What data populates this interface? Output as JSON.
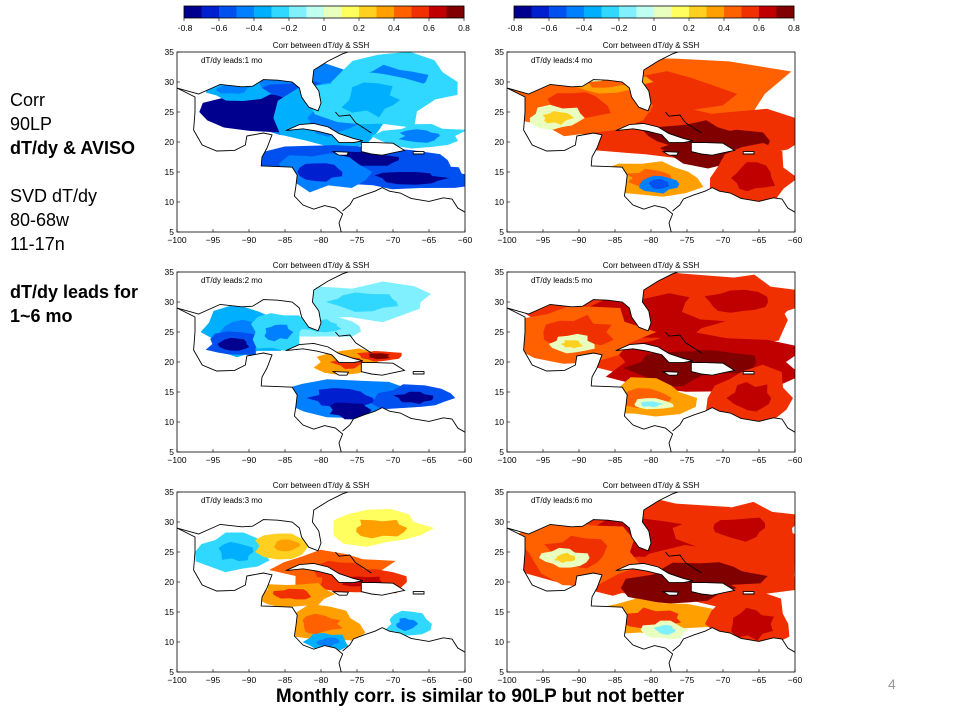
{
  "side_text": {
    "line1": "Corr",
    "line2": "90LP",
    "line3": "dT/dy & AVISO",
    "line4": "SVD dT/dy",
    "line5": "80-68w",
    "line6": "11-17n",
    "line7": "dT/dy leads for",
    "line8": "1~6 mo"
  },
  "footer": "Monthly corr. is similar to 90LP but not better",
  "page_number": "4",
  "colorbar": {
    "ticks": [
      "−0.8",
      "−0.6",
      "−0.4",
      "−0.2",
      "0",
      "0.2",
      "0.4",
      "0.6",
      "0.8"
    ],
    "colors": [
      "#00008f",
      "#0020d0",
      "#0050f0",
      "#0080ff",
      "#00b0ff",
      "#30d8ff",
      "#80f0ff",
      "#c0fff0",
      "#e8ffc0",
      "#ffff60",
      "#ffd020",
      "#ffa000",
      "#ff6000",
      "#f03000",
      "#c00000",
      "#800000"
    ]
  },
  "chart_data": [
    {
      "type": "heatmap",
      "title": "Corr between dT/dy & SSH",
      "label": "dT/dy leads:1 mo",
      "x_ticks": [
        "−100",
        "−95",
        "−90",
        "−85",
        "−80",
        "−75",
        "−70",
        "−65",
        "−60"
      ],
      "y_ticks": [
        "5",
        "10",
        "15",
        "20",
        "25",
        "30",
        "35"
      ],
      "xlim": [
        -100,
        -60
      ],
      "ylim": [
        5,
        35
      ],
      "clim": [
        -0.8,
        0.8
      ]
    },
    {
      "type": "heatmap",
      "title": "Corr between dT/dy & SSH",
      "label": "dT/dy leads:4 mo",
      "x_ticks": [
        "−100",
        "−95",
        "−90",
        "−85",
        "−80",
        "−75",
        "−70",
        "−65",
        "−60"
      ],
      "y_ticks": [
        "5",
        "10",
        "15",
        "20",
        "25",
        "30",
        "35"
      ],
      "xlim": [
        -100,
        -60
      ],
      "ylim": [
        5,
        35
      ],
      "clim": [
        -0.8,
        0.8
      ]
    },
    {
      "type": "heatmap",
      "title": "Corr between dT/dy & SSH",
      "label": "dT/dy leads:2 mo",
      "x_ticks": [
        "−100",
        "−95",
        "−90",
        "−85",
        "−80",
        "−75",
        "−70",
        "−65",
        "−60"
      ],
      "y_ticks": [
        "5",
        "10",
        "15",
        "20",
        "25",
        "30",
        "35"
      ],
      "xlim": [
        -100,
        -60
      ],
      "ylim": [
        5,
        35
      ],
      "clim": [
        -0.8,
        0.8
      ]
    },
    {
      "type": "heatmap",
      "title": "Corr between dT/dy & SSH",
      "label": "dT/dy leads:5 mo",
      "x_ticks": [
        "−100",
        "−95",
        "−90",
        "−85",
        "−80",
        "−75",
        "−70",
        "−65",
        "−60"
      ],
      "y_ticks": [
        "5",
        "10",
        "15",
        "20",
        "25",
        "30",
        "35"
      ],
      "xlim": [
        -100,
        -60
      ],
      "ylim": [
        5,
        35
      ],
      "clim": [
        -0.8,
        0.8
      ]
    },
    {
      "type": "heatmap",
      "title": "Corr between dT/dy & SSH",
      "label": "dT/dy leads:3 mo",
      "x_ticks": [
        "−100",
        "−95",
        "−90",
        "−85",
        "−80",
        "−75",
        "−70",
        "−65",
        "−60"
      ],
      "y_ticks": [
        "5",
        "10",
        "15",
        "20",
        "25",
        "30",
        "35"
      ],
      "xlim": [
        -100,
        -60
      ],
      "ylim": [
        5,
        35
      ],
      "clim": [
        -0.8,
        0.8
      ]
    },
    {
      "type": "heatmap",
      "title": "Corr between dT/dy & SSH",
      "label": "dT/dy leads:6 mo",
      "x_ticks": [
        "−100",
        "−95",
        "−90",
        "−85",
        "−80",
        "−75",
        "−70",
        "−65",
        "−60"
      ],
      "y_ticks": [
        "5",
        "10",
        "15",
        "20",
        "25",
        "30",
        "35"
      ],
      "xlim": [
        -100,
        -60
      ],
      "ylim": [
        5,
        35
      ],
      "clim": [
        -0.8,
        0.8
      ]
    }
  ]
}
